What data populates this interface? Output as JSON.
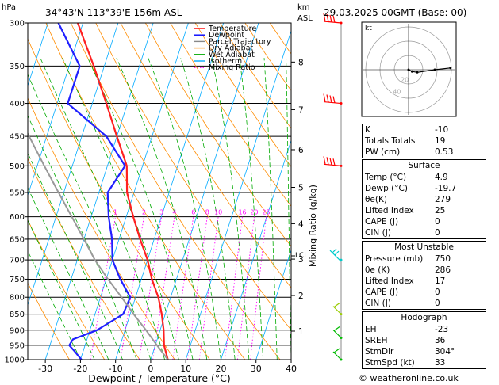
{
  "header": {
    "hpa_unit": "hPa",
    "location": "34°43'N  113°39'E  156m  ASL",
    "km_unit": "km",
    "asl_unit": "ASL",
    "datetime": "29.03.2025  00GMT  (Base: 00)"
  },
  "legend": [
    {
      "label": "Temperature",
      "color": "#ff0000",
      "dash": "solid"
    },
    {
      "label": "Dewpoint",
      "color": "#0000ff",
      "dash": "solid"
    },
    {
      "label": "Parcel Trajectory",
      "color": "#888888",
      "dash": "solid"
    },
    {
      "label": "Dry Adiabat",
      "color": "#ff8c00",
      "dash": "solid"
    },
    {
      "label": "Wet Adiabat",
      "color": "#00aa00",
      "dash": "solid"
    },
    {
      "label": "Isotherm",
      "color": "#00aaff",
      "dash": "solid"
    },
    {
      "label": "Mixing Ratio",
      "color": "#ff00ff",
      "dash": "dotted"
    }
  ],
  "chart_data": {
    "type": "line",
    "xlabel": "Dewpoint / Temperature (°C)",
    "ylabel_right": "Mixing Ratio (g/kg)",
    "ylabel_left": "hPa",
    "xlim": [
      -35,
      40
    ],
    "ylim_hpa": [
      1000,
      300
    ],
    "x_ticks": [
      "-30",
      "-20",
      "-10",
      "0",
      "10",
      "20",
      "30",
      "40"
    ],
    "pressure_levels": [
      "300",
      "350",
      "400",
      "450",
      "500",
      "550",
      "600",
      "650",
      "700",
      "750",
      "800",
      "850",
      "900",
      "950",
      "1000"
    ],
    "km_ticks": [
      {
        "p": 345,
        "label": "8"
      },
      {
        "p": 409,
        "label": "7"
      },
      {
        "p": 472,
        "label": "6"
      },
      {
        "p": 540,
        "label": "5"
      },
      {
        "p": 615,
        "label": "4"
      },
      {
        "p": 698,
        "label": "3"
      },
      {
        "p": 795,
        "label": "2"
      },
      {
        "p": 903,
        "label": "1"
      }
    ],
    "lcl_label": "LCL",
    "lcl_p": 690,
    "mixing_ratio_labels": [
      {
        "label": "1",
        "w": 1
      },
      {
        "label": "2",
        "w": 2
      },
      {
        "label": "3",
        "w": 3
      },
      {
        "label": "4",
        "w": 4
      },
      {
        "label": "6",
        "w": 6
      },
      {
        "label": "8",
        "w": 8
      },
      {
        "label": "10",
        "w": 10
      },
      {
        "label": "16",
        "w": 16
      },
      {
        "label": "20",
        "w": 20
      },
      {
        "label": "25",
        "w": 25
      }
    ],
    "series": [
      {
        "name": "Temperature",
        "color": "#ff2020",
        "points": [
          {
            "p": 1000,
            "t": 4.9
          },
          {
            "p": 950,
            "t": 2.5
          },
          {
            "p": 900,
            "t": 1.0
          },
          {
            "p": 850,
            "t": -1.0
          },
          {
            "p": 800,
            "t": -3.5
          },
          {
            "p": 750,
            "t": -7.0
          },
          {
            "p": 700,
            "t": -10.0
          },
          {
            "p": 650,
            "t": -14.0
          },
          {
            "p": 600,
            "t": -18.0
          },
          {
            "p": 550,
            "t": -22.0
          },
          {
            "p": 500,
            "t": -24.5
          },
          {
            "p": 450,
            "t": -30.0
          },
          {
            "p": 400,
            "t": -36.0
          },
          {
            "p": 350,
            "t": -43.0
          },
          {
            "p": 300,
            "t": -51.5
          }
        ]
      },
      {
        "name": "Dewpoint",
        "color": "#2020ff",
        "points": [
          {
            "p": 1000,
            "t": -19.7
          },
          {
            "p": 970,
            "t": -22.5
          },
          {
            "p": 950,
            "t": -24.5
          },
          {
            "p": 930,
            "t": -24.0
          },
          {
            "p": 900,
            "t": -18.0
          },
          {
            "p": 850,
            "t": -12.0
          },
          {
            "p": 800,
            "t": -11.5
          },
          {
            "p": 750,
            "t": -16.0
          },
          {
            "p": 700,
            "t": -20.0
          },
          {
            "p": 650,
            "t": -22.0
          },
          {
            "p": 600,
            "t": -25.0
          },
          {
            "p": 550,
            "t": -27.5
          },
          {
            "p": 500,
            "t": -25.0
          },
          {
            "p": 450,
            "t": -33.0
          },
          {
            "p": 400,
            "t": -47.0
          },
          {
            "p": 350,
            "t": -47.0
          },
          {
            "p": 300,
            "t": -57.0
          }
        ]
      },
      {
        "name": "Parcel Trajectory",
        "color": "#999999",
        "points": [
          {
            "p": 1000,
            "t": 4.9
          },
          {
            "p": 950,
            "t": 0.5
          },
          {
            "p": 900,
            "t": -4.0
          },
          {
            "p": 850,
            "t": -9.0
          },
          {
            "p": 800,
            "t": -14.0
          },
          {
            "p": 750,
            "t": -19.5
          },
          {
            "p": 700,
            "t": -25.0
          },
          {
            "p": 650,
            "t": -30.0
          },
          {
            "p": 600,
            "t": -35.5
          },
          {
            "p": 550,
            "t": -41.5
          },
          {
            "p": 500,
            "t": -48.0
          },
          {
            "p": 450,
            "t": -55.0
          },
          {
            "p": 400,
            "t": -63.0
          },
          {
            "p": 350,
            "t": -72.0
          },
          {
            "p": 300,
            "t": -82.0
          }
        ]
      }
    ],
    "wind_barbs": [
      {
        "p": 300,
        "color": "#ff0000"
      },
      {
        "p": 400,
        "color": "#ff0000"
      },
      {
        "p": 500,
        "color": "#ff0000"
      },
      {
        "p": 700,
        "color": "#00cccc"
      },
      {
        "p": 850,
        "color": "#99cc00"
      },
      {
        "p": 925,
        "color": "#00bb00"
      },
      {
        "p": 1000,
        "color": "#00bb00"
      }
    ]
  },
  "hodograph": {
    "unit": "kt",
    "ring_labels": [
      "20",
      "40"
    ],
    "points": [
      {
        "u": 0,
        "v": 0
      },
      {
        "u": 4,
        "v": -2
      },
      {
        "u": 10,
        "v": -3
      },
      {
        "u": 30,
        "v": 0
      },
      {
        "u": 48,
        "v": 2
      }
    ]
  },
  "indices": {
    "rows": [
      {
        "k": "K",
        "v": "-10"
      },
      {
        "k": "Totals Totals",
        "v": "19"
      },
      {
        "k": "PW (cm)",
        "v": "0.53"
      }
    ]
  },
  "surface": {
    "title": "Surface",
    "rows": [
      {
        "k": "Temp (°C)",
        "v": "4.9"
      },
      {
        "k": "Dewp (°C)",
        "v": "-19.7"
      },
      {
        "k": "θe(K)",
        "v": "279"
      },
      {
        "k": "Lifted Index",
        "v": "25"
      },
      {
        "k": "CAPE (J)",
        "v": "0"
      },
      {
        "k": "CIN (J)",
        "v": "0"
      }
    ]
  },
  "most_unstable": {
    "title": "Most Unstable",
    "rows": [
      {
        "k": "Pressure (mb)",
        "v": "750"
      },
      {
        "k": "θe (K)",
        "v": "286"
      },
      {
        "k": "Lifted Index",
        "v": "17"
      },
      {
        "k": "CAPE (J)",
        "v": "0"
      },
      {
        "k": "CIN (J)",
        "v": "0"
      }
    ]
  },
  "hodograph_table": {
    "title": "Hodograph",
    "rows": [
      {
        "k": "EH",
        "v": "-23"
      },
      {
        "k": "SREH",
        "v": "36"
      },
      {
        "k": "StmDir",
        "v": "304°"
      },
      {
        "k": "StmSpd (kt)",
        "v": "33"
      }
    ]
  },
  "credit": "© weatheronline.co.uk"
}
